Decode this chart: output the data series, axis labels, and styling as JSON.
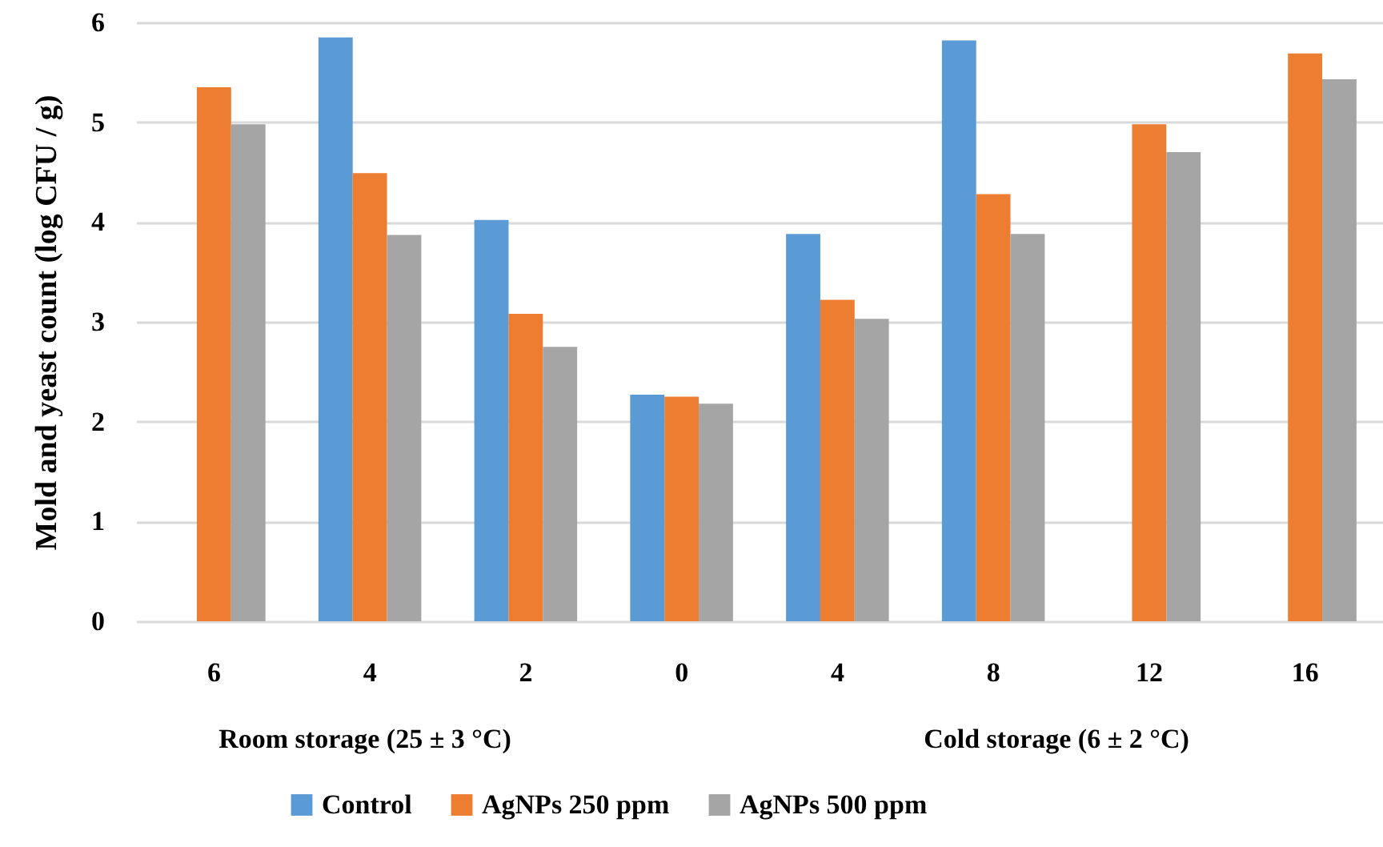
{
  "chart_data": {
    "type": "bar",
    "ylabel": "Mold and yeast count (log CFU / g)",
    "categories": [
      "6",
      "4",
      "2",
      "0",
      "4",
      "8",
      "12",
      "16"
    ],
    "series": [
      {
        "name": "Control",
        "color": "#5b9bd5",
        "values": [
          0,
          5.85,
          4.02,
          2.27,
          3.88,
          5.82,
          0,
          0
        ]
      },
      {
        "name": "AgNPs 250 ppm",
        "color": "#ed7d31",
        "values": [
          5.35,
          4.49,
          3.08,
          2.25,
          3.22,
          4.28,
          4.98,
          5.69
        ]
      },
      {
        "name": "AgNPs 500 ppm",
        "color": "#a5a5a5",
        "values": [
          4.98,
          3.87,
          2.75,
          2.18,
          3.03,
          3.88,
          4.7,
          5.43
        ]
      }
    ],
    "ylim": [
      0,
      6
    ],
    "yticks": [
      0,
      1,
      2,
      3,
      4,
      5,
      6
    ],
    "grid": "y",
    "legend": "bottom",
    "annotations": [
      "Room storage (25 ± 3 °C)",
      "Cold storage (6 ± 2 °C)"
    ]
  }
}
